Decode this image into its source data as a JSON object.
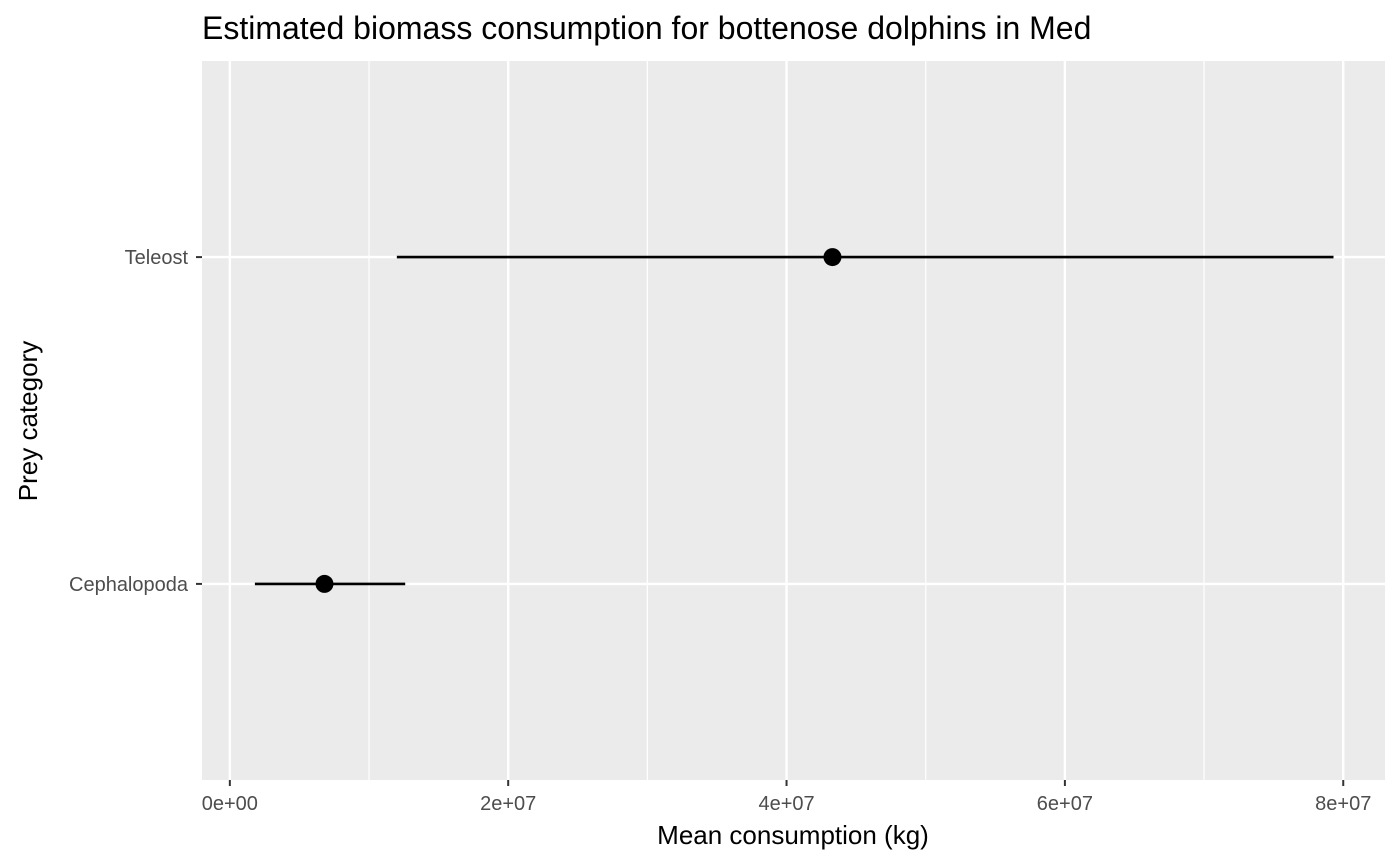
{
  "chart_data": {
    "type": "scatter",
    "orientation": "horizontal",
    "title": "Estimated biomass consumption for bottenose dolphins in Med",
    "xlabel": "Mean consumption (kg)",
    "ylabel": "Prey category",
    "xlim": [
      -2000000,
      83000000
    ],
    "x_ticks": [
      0,
      20000000,
      40000000,
      60000000,
      80000000
    ],
    "x_tick_labels": [
      "0e+00",
      "2e+07",
      "4e+07",
      "6e+07",
      "8e+07"
    ],
    "x_minor_ticks": [
      10000000,
      30000000,
      50000000,
      70000000
    ],
    "categories": [
      "Cephalopoda",
      "Teleost"
    ],
    "points": [
      {
        "category": "Cephalopoda",
        "mean": 6800000,
        "lower": 1800000,
        "upper": 12600000
      },
      {
        "category": "Teleost",
        "mean": 43300000,
        "lower": 12000000,
        "upper": 79300000
      }
    ],
    "grid": true,
    "legend": "none",
    "colors": {
      "panel": "#ebebeb",
      "grid": "#ffffff",
      "point": "#000000",
      "tick_text": "#4d4d4d",
      "tick_mark": "#333333"
    }
  }
}
